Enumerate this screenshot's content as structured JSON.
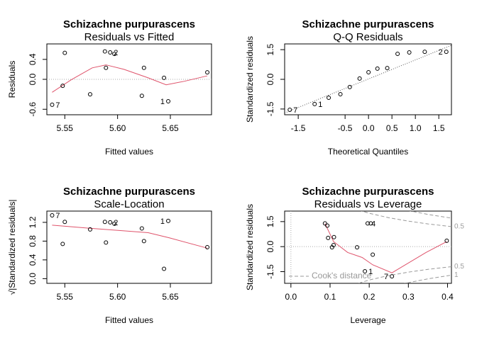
{
  "chart_data": [
    {
      "type": "scatter",
      "title": "Schizachne purpurascens",
      "subtitle": "Residuals vs Fitted",
      "xlabel": "Fitted values",
      "ylabel": "Residuals",
      "xlim": [
        5.533,
        5.689
      ],
      "ylim": [
        -0.71,
        0.71
      ],
      "xticks": [
        5.55,
        {
          "value": 5.6,
          "label": "5.60"
        },
        5.65
      ],
      "yticks": [
        -0.6,
        {
          "value": 0,
          "label": "0.0"
        },
        0.4
      ],
      "hline": 0,
      "points": {
        "x": [
          5.538,
          5.55,
          5.548,
          5.574,
          5.588,
          5.593,
          5.597,
          5.589,
          5.623,
          5.625,
          5.644,
          5.648,
          5.685
        ],
        "y": [
          -0.51,
          0.53,
          -0.13,
          -0.3,
          0.56,
          0.54,
          0.51,
          0.23,
          -0.33,
          0.23,
          0.03,
          -0.44,
          0.14
        ],
        "labels": [
          "7",
          null,
          null,
          null,
          null,
          "2",
          null,
          null,
          null,
          null,
          null,
          "1",
          null
        ]
      },
      "smooth": {
        "color": "#df536b",
        "x": [
          5.538,
          5.556,
          5.576,
          5.589,
          5.606,
          5.629,
          5.646,
          5.663,
          5.685
        ],
        "y": [
          -0.26,
          -0.01,
          0.23,
          0.29,
          0.2,
          0.03,
          -0.11,
          -0.04,
          0.07
        ]
      }
    },
    {
      "type": "qq",
      "title": "Schizachne purpurascens",
      "subtitle": "Q-Q Residuals",
      "xlabel": "Theoretical Quantiles",
      "ylabel": "Standardized residuals",
      "xlim": [
        -1.79,
        1.77
      ],
      "ylim": [
        -1.79,
        1.79
      ],
      "xticks": [
        -1.5,
        -0.5,
        {
          "value": 0,
          "label": "0.0"
        },
        0.5,
        {
          "value": 1,
          "label": "1.0"
        },
        1.5
      ],
      "yticks": [
        -1.5,
        {
          "value": 0,
          "label": "0.0"
        },
        1.5
      ],
      "ref_line": {
        "x": [
          -1.79,
          1.77
        ],
        "y": [
          -1.7,
          1.72
        ]
      },
      "points": {
        "x": [
          -1.68,
          -1.15,
          -0.85,
          -0.6,
          -0.4,
          -0.19,
          0,
          0.19,
          0.4,
          0.62,
          0.87,
          1.2,
          1.66
        ],
        "y": [
          -1.54,
          -1.25,
          -0.93,
          -0.75,
          -0.39,
          0.04,
          0.36,
          0.54,
          0.57,
          1.29,
          1.36,
          1.39,
          1.39
        ],
        "labels": [
          "7",
          "1",
          null,
          null,
          null,
          null,
          null,
          null,
          null,
          null,
          null,
          null,
          "2"
        ]
      }
    },
    {
      "type": "scatter",
      "title": "Schizachne purpurascens",
      "subtitle": "Scale-Location",
      "xlabel": "Fitted values",
      "ylabel": "√|Standardized residuals|",
      "xlim": [
        5.533,
        5.689
      ],
      "ylim": [
        -0.1,
        1.44
      ],
      "xticks": [
        5.55,
        {
          "value": 5.6,
          "label": "5.60"
        },
        5.65
      ],
      "yticks": [
        {
          "value": 0,
          "label": "0.0"
        },
        0.4,
        0.8,
        1.2
      ],
      "points": {
        "x": [
          5.538,
          5.55,
          5.548,
          5.574,
          5.588,
          5.593,
          5.597,
          5.589,
          5.623,
          5.625,
          5.644,
          5.648,
          5.685
        ],
        "y": [
          1.35,
          1.21,
          0.74,
          1.05,
          1.21,
          1.2,
          1.17,
          0.77,
          1.07,
          0.8,
          0.21,
          1.23,
          0.67
        ],
        "labels": [
          "7",
          null,
          null,
          null,
          null,
          "2",
          null,
          null,
          null,
          null,
          null,
          "1",
          null
        ]
      },
      "smooth": {
        "color": "#df536b",
        "x": [
          5.538,
          5.576,
          5.606,
          5.629,
          5.649,
          5.685
        ],
        "y": [
          1.14,
          1.07,
          1.02,
          0.98,
          0.87,
          0.65
        ]
      }
    },
    {
      "type": "leverage",
      "title": "Schizachne purpurascens",
      "subtitle": "Residuals vs Leverage",
      "xlabel": "Leverage",
      "ylabel": "Standardized residuals",
      "xlim": [
        -0.016,
        0.41
      ],
      "ylim": [
        -2.2,
        2.13
      ],
      "xticks": [
        {
          "value": 0,
          "label": "0.0"
        },
        0.1,
        0.2,
        0.3,
        0.4
      ],
      "yticks": [
        -1.5,
        {
          "value": 0,
          "label": "0.0"
        },
        1.5
      ],
      "hline": 0,
      "vline": 0,
      "points": {
        "x": [
          0.087,
          0.093,
          0.095,
          0.11,
          0.109,
          0.105,
          0.169,
          0.189,
          0.196,
          0.204,
          0.209,
          0.258,
          0.398
        ],
        "y": [
          1.39,
          1.26,
          0.52,
          0.57,
          0.09,
          -0.04,
          -0.04,
          -1.48,
          1.39,
          1.39,
          -0.48,
          -1.78,
          0.35
        ],
        "labels": [
          null,
          null,
          null,
          null,
          null,
          null,
          null,
          "1",
          "4",
          null,
          null,
          "7",
          null
        ]
      },
      "smooth": {
        "color": "#df536b",
        "x": [
          0.087,
          0.109,
          0.145,
          0.182,
          0.209,
          0.258,
          0.345,
          0.398
        ],
        "y": [
          1.39,
          0.3,
          -0.35,
          -0.65,
          -1.09,
          -1.57,
          -0.35,
          0.3
        ]
      },
      "cook_legend": "Cook's distance",
      "cook_lines": [
        {
          "label": 0.5,
          "x": [
            0.12,
            0.16,
            0.2,
            0.25,
            0.3,
            0.35,
            0.41
          ],
          "y": [
            2.71,
            2.29,
            2,
            1.73,
            1.53,
            1.36,
            1.2
          ]
        },
        {
          "label": 0.5,
          "x": [
            0.12,
            0.16,
            0.2,
            0.25,
            0.3,
            0.35,
            0.41
          ],
          "y": [
            -2.71,
            -2.29,
            -2,
            -1.73,
            -1.53,
            -1.36,
            -1.2
          ]
        },
        {
          "label": null,
          "x": [
            0.2,
            0.25,
            0.3,
            0.35,
            0.41
          ],
          "y": [
            2.83,
            2.45,
            2.16,
            1.93,
            1.71
          ]
        },
        {
          "label": 1,
          "x": [
            0.2,
            0.25,
            0.3,
            0.35,
            0.41
          ],
          "y": [
            -2.83,
            -2.45,
            -2.16,
            -1.93,
            -1.71
          ]
        }
      ]
    }
  ]
}
